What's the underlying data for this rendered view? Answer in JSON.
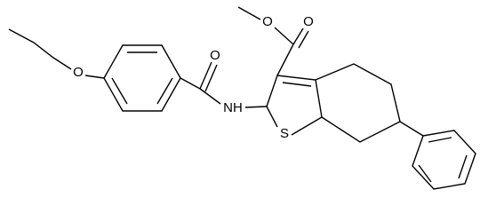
{
  "atoms": {
    "ether_oxygen": "O",
    "amide_oxygen": "O",
    "ester_carbonyl_oxygen": "O",
    "ester_oxygen": "O",
    "amine": "NH",
    "sulfur": "S"
  }
}
